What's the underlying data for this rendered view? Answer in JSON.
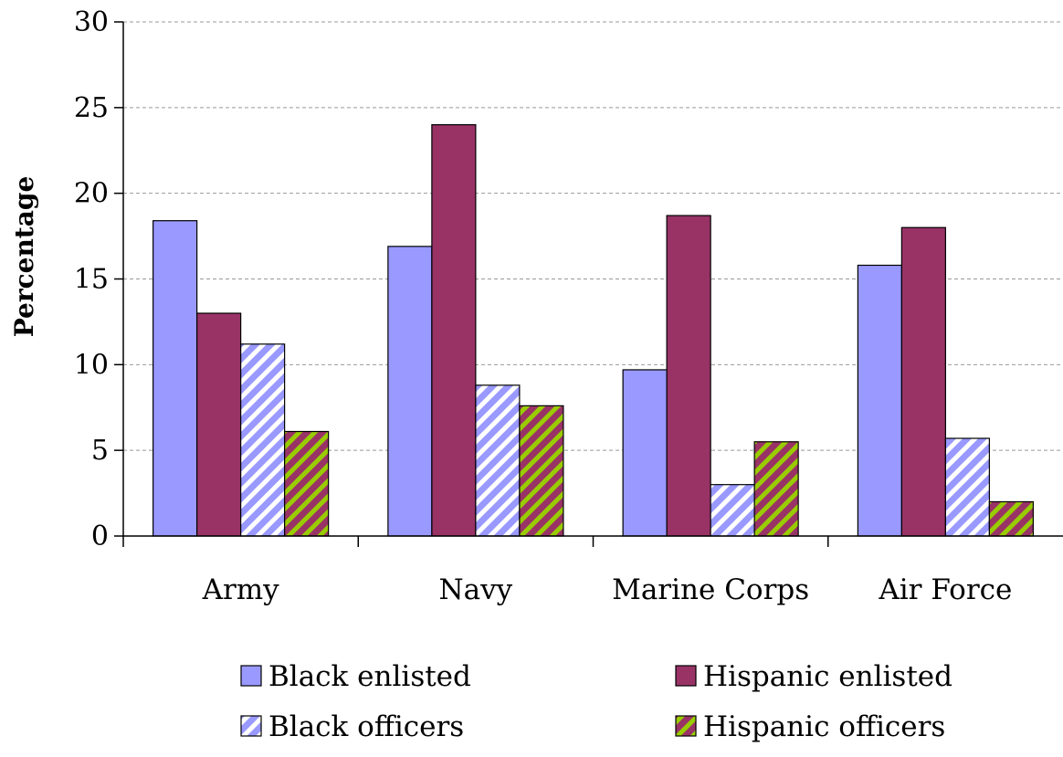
{
  "chart_data": {
    "type": "bar",
    "title": "",
    "xlabel": "",
    "ylabel": "Percentage",
    "ylim": [
      0,
      30
    ],
    "yticks": [
      0,
      5,
      10,
      15,
      20,
      25,
      30
    ],
    "grid": true,
    "legend_position": "bottom",
    "categories": [
      "Army",
      "Navy",
      "Marine Corps",
      "Air Force"
    ],
    "series": [
      {
        "name": "Black enlisted",
        "values": [
          18.4,
          16.9,
          9.7,
          15.8
        ],
        "color": "#9999ff",
        "pattern": "solid"
      },
      {
        "name": "Hispanic enlisted",
        "values": [
          13.0,
          24.0,
          18.7,
          18.0
        ],
        "color": "#993366",
        "pattern": "solid"
      },
      {
        "name": "Black officers",
        "values": [
          11.2,
          8.8,
          3.0,
          5.7
        ],
        "color": "#9999ff",
        "pattern": "diagonal-stripes-white"
      },
      {
        "name": "Hispanic officers",
        "values": [
          6.1,
          7.6,
          5.5,
          2.0
        ],
        "color": "#993366",
        "pattern": "diagonal-stripes-green"
      }
    ]
  }
}
